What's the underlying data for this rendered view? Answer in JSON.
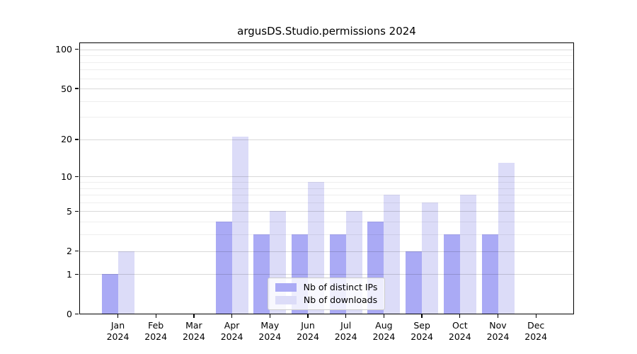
{
  "chart_data": {
    "type": "bar",
    "title": "argusDS.Studio.permissions 2024",
    "categories": [
      "Jan",
      "Feb",
      "Mar",
      "Apr",
      "May",
      "Jun",
      "Jul",
      "Aug",
      "Sep",
      "Oct",
      "Nov",
      "Dec"
    ],
    "year_label": "2024",
    "series": [
      {
        "name": "Nb of distinct IPs",
        "color": "#aaaaf5",
        "values": [
          1,
          0,
          0,
          4,
          3,
          3,
          3,
          4,
          2,
          3,
          3,
          0
        ]
      },
      {
        "name": "Nb of downloads",
        "color": "#dcdcf8",
        "values": [
          2,
          0,
          0,
          21,
          5,
          9,
          5,
          7,
          6,
          7,
          13,
          0
        ]
      }
    ],
    "yscale": "log1p",
    "ymax": 113,
    "yticks_major": [
      0,
      1,
      2,
      5,
      10,
      20,
      50,
      100
    ],
    "yticks_minor": [
      3,
      4,
      6,
      7,
      8,
      9,
      30,
      40,
      60,
      70,
      80,
      90
    ],
    "xlabel": "",
    "ylabel": "",
    "grid": "on",
    "legend_position": "lower center"
  }
}
